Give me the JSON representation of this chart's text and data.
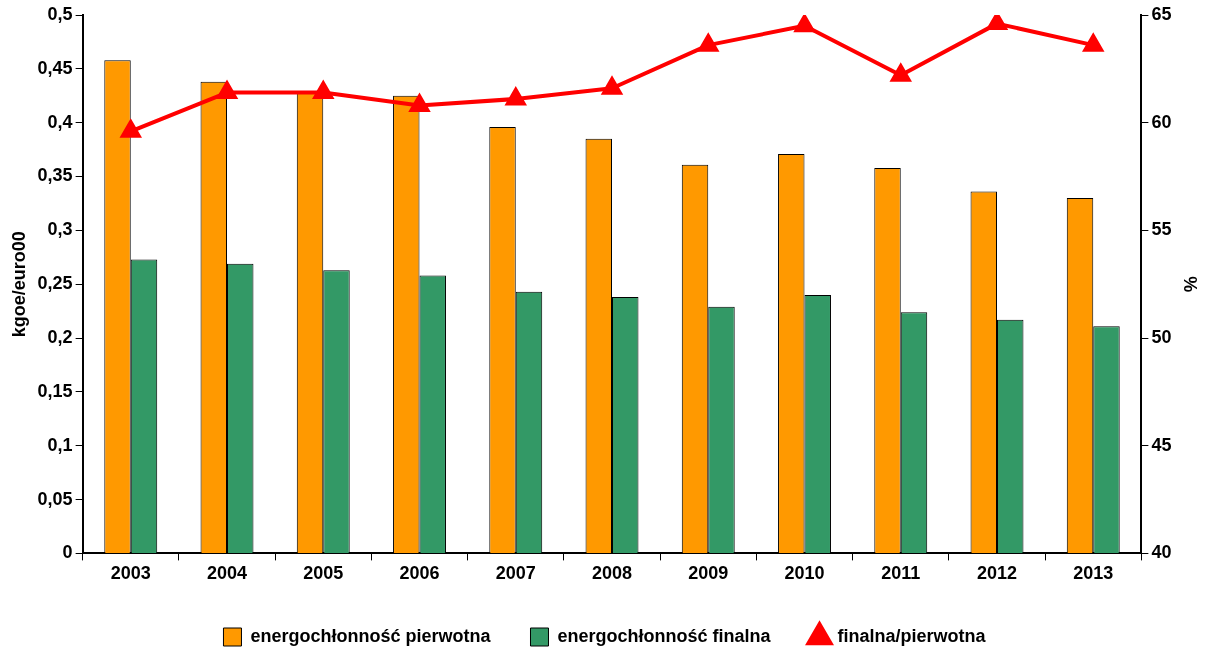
{
  "chart_data": {
    "type": "bar",
    "ylabel": "kgoe/euro00",
    "y2label": "%",
    "categories": [
      "2003",
      "2004",
      "2005",
      "2006",
      "2007",
      "2008",
      "2009",
      "2010",
      "2011",
      "2012",
      "2013"
    ],
    "series": [
      {
        "name": "energochłonność pierwotna",
        "color": "#ff9900",
        "values": [
          0.458,
          0.438,
          0.429,
          0.425,
          0.396,
          0.385,
          0.361,
          0.371,
          0.358,
          0.336,
          0.33
        ]
      },
      {
        "name": "energochłonność finalna",
        "color": "#339966",
        "values": [
          0.273,
          0.269,
          0.263,
          0.258,
          0.243,
          0.238,
          0.229,
          0.24,
          0.224,
          0.217,
          0.211
        ]
      },
      {
        "name": "finalna/pierwotna",
        "type": "line",
        "axis": "y2",
        "color": "#ff0000",
        "marker": "triangle",
        "values": [
          59.6,
          61.4,
          61.4,
          60.8,
          61.1,
          61.6,
          63.6,
          64.5,
          62.2,
          64.6,
          63.6
        ]
      }
    ],
    "ylim": [
      0,
      0.5
    ],
    "yticks": [
      0,
      {
        "value": 0.05,
        "label": "0,05"
      },
      {
        "value": 0.1,
        "label": "0,1"
      },
      {
        "value": 0.15,
        "label": "0,15"
      },
      {
        "value": 0.2,
        "label": "0,2"
      },
      {
        "value": 0.25,
        "label": "0,25"
      },
      {
        "value": 0.3,
        "label": "0,3"
      },
      {
        "value": 0.35,
        "label": "0,35"
      },
      {
        "value": 0.4,
        "label": "0,4"
      },
      {
        "value": 0.45,
        "label": "0,45"
      },
      {
        "value": 0.5,
        "label": "0,5"
      }
    ],
    "y2lim": [
      40,
      65
    ],
    "y2ticks": [
      40,
      45,
      50,
      55,
      60,
      65
    ],
    "grid": false,
    "legend": "bottom"
  }
}
